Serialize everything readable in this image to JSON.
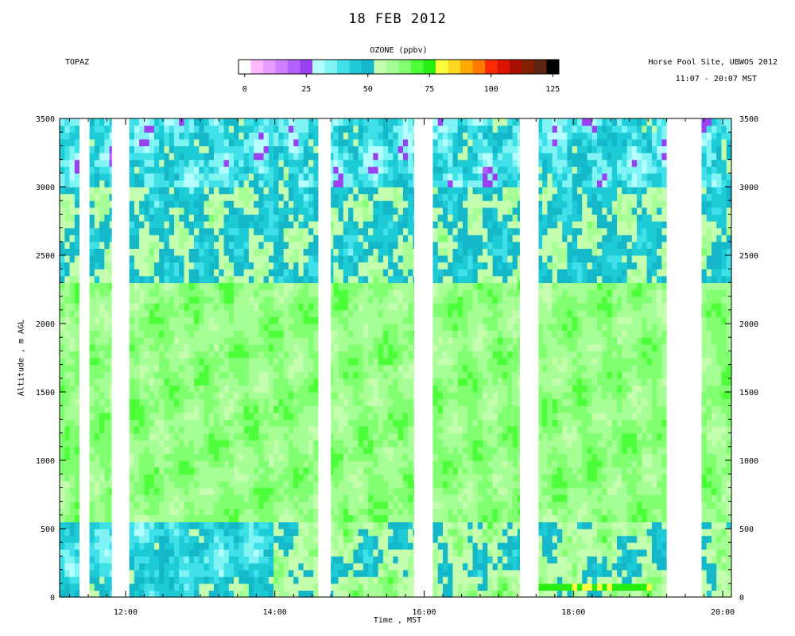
{
  "header": {
    "title": "18 FEB 2012",
    "instrument": "TOPAZ",
    "site": "Horse Pool Site, UBWOS 2012",
    "time_range": "11:07 - 20:07 MST"
  },
  "colorbar": {
    "label": "OZONE (ppbv)",
    "min": 0,
    "max": 125,
    "step": 5,
    "ticks": [
      0,
      25,
      50,
      75,
      100,
      125
    ],
    "colors": [
      "#ffffff",
      "#ffb8ff",
      "#e69cff",
      "#cc80ff",
      "#b260ff",
      "#9940f0",
      "#b4ffff",
      "#80f4f4",
      "#40e0e8",
      "#1ccbd6",
      "#14b8c8",
      "#c4ffb0",
      "#a6ff94",
      "#80ff70",
      "#4cff38",
      "#26ee10",
      "#ffff40",
      "#ffd820",
      "#ffaa00",
      "#ff7a00",
      "#ff2a00",
      "#dd1200",
      "#aa1000",
      "#842000",
      "#5c2410",
      "#000000"
    ]
  },
  "chart_data": {
    "type": "heatmap",
    "title": "18 FEB 2012",
    "variable": "OZONE (ppbv)",
    "xlabel": "Time , MST",
    "ylabel": "Altitude , m AGL",
    "xlim": [
      "11:07",
      "20:07"
    ],
    "ylim": [
      0,
      3500
    ],
    "x_ticks": [
      "12:00",
      "14:00",
      "16:00",
      "18:00",
      "20:00"
    ],
    "y_ticks": [
      0,
      500,
      1000,
      1500,
      2000,
      2500,
      3000,
      3500
    ],
    "no_data_intervals": [
      {
        "from": "11:23",
        "to": "11:31"
      },
      {
        "from": "11:49",
        "to": "12:03"
      },
      {
        "from": "14:35",
        "to": "14:45"
      },
      {
        "from": "15:52",
        "to": "16:07"
      },
      {
        "from": "17:17",
        "to": "17:32"
      },
      {
        "from": "19:15",
        "to": "19:43"
      }
    ],
    "profile": [
      {
        "altitude_range": [
          0,
          150
        ],
        "ozone_ppbv": "40-70, up to 75 near 18:00"
      },
      {
        "altitude_range": [
          150,
          550
        ],
        "ozone_ppbv": "25-50 before 14:00, 45-60 after"
      },
      {
        "altitude_range": [
          550,
          2300
        ],
        "ozone_ppbv": "50-70"
      },
      {
        "altitude_range": [
          2300,
          3000
        ],
        "ozone_ppbv": "35-55"
      },
      {
        "altitude_range": [
          3000,
          3500
        ],
        "ozone_ppbv": "15-45"
      }
    ]
  }
}
